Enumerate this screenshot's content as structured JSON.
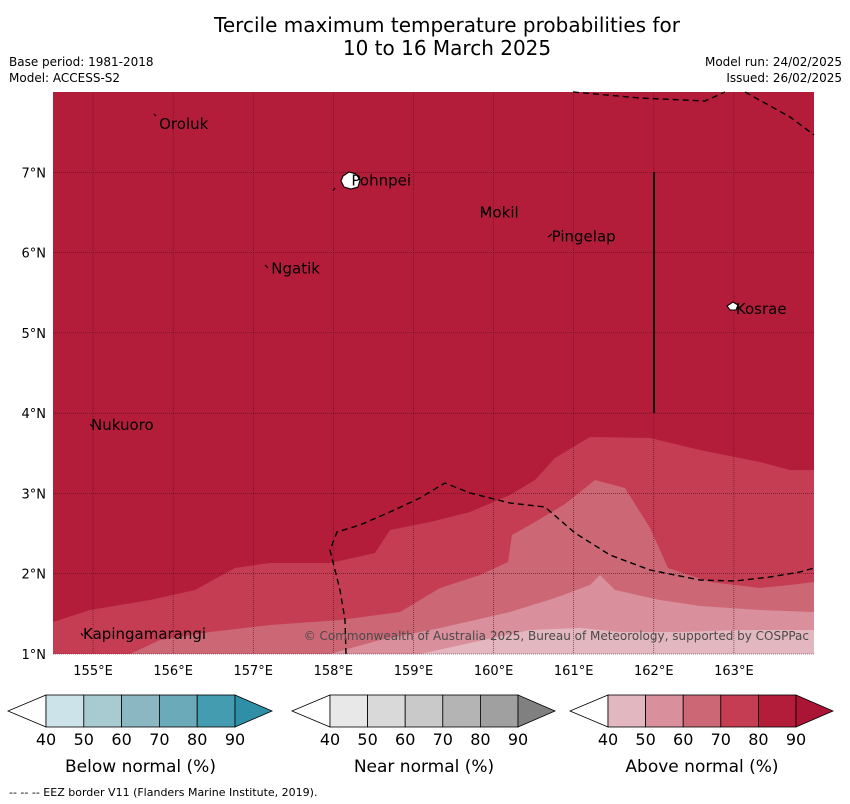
{
  "title_line1": "Tercile maximum temperature probabilities for",
  "title_line2": "10 to 16 March 2025",
  "base_period": "Base period: 1981-2018",
  "model": "Model: ACCESS-S2",
  "model_run": "Model run: 24/02/2025",
  "issued": "Issued: 26/02/2025",
  "copyright": "© Commonwealth of Australia 2025, Bureau of Meteorology, supported by COSPPac",
  "footer": "--  --  -- EEZ border V11 (Flanders Marine Institute, 2019).",
  "map": {
    "lon_range": [
      154.5,
      164.0
    ],
    "lat_range": [
      1.0,
      8.0
    ],
    "lon_ticks": [
      {
        "value": 155,
        "label": "155°E"
      },
      {
        "value": 156,
        "label": "156°E"
      },
      {
        "value": 157,
        "label": "157°E"
      },
      {
        "value": 158,
        "label": "158°E"
      },
      {
        "value": 159,
        "label": "159°E"
      },
      {
        "value": 160,
        "label": "160°E"
      },
      {
        "value": 161,
        "label": "161°E"
      },
      {
        "value": 162,
        "label": "162°E"
      },
      {
        "value": 163,
        "label": "163°E"
      }
    ],
    "lat_ticks": [
      {
        "value": 1,
        "label": "1°N"
      },
      {
        "value": 2,
        "label": "2°N"
      },
      {
        "value": 3,
        "label": "3°N"
      },
      {
        "value": 4,
        "label": "4°N"
      },
      {
        "value": 5,
        "label": "5°N"
      },
      {
        "value": 6,
        "label": "6°N"
      },
      {
        "value": 7,
        "label": "7°N"
      }
    ],
    "places": [
      {
        "name": "Oroluk",
        "lon": 155.8,
        "lat": 7.6
      },
      {
        "name": "Pohnpei",
        "lon": 158.2,
        "lat": 6.9
      },
      {
        "name": "Mokil",
        "lon": 159.8,
        "lat": 6.5
      },
      {
        "name": "Pingelap",
        "lon": 160.7,
        "lat": 6.2
      },
      {
        "name": "Ngatik",
        "lon": 157.2,
        "lat": 5.8
      },
      {
        "name": "Kosrae",
        "lon": 163.0,
        "lat": 5.3
      },
      {
        "name": "Nukuoro",
        "lon": 154.95,
        "lat": 3.85
      },
      {
        "name": "Kapingamarangi",
        "lon": 154.85,
        "lat": 1.25
      }
    ],
    "colors": {
      "above_80": "#b31d3a",
      "above_70": "#c43d52",
      "above_60": "#cc6776",
      "above_50": "#d98f9c",
      "above_40": "#e3b7bf",
      "land": "#ffffff",
      "eez": "#000000"
    }
  },
  "colorbars": [
    {
      "label": "Below normal (%)",
      "ticks": [
        "40",
        "50",
        "60",
        "70",
        "80",
        "90"
      ],
      "colors": [
        "#ffffff",
        "#cbe3e9",
        "#a8cbd1",
        "#8ab7c1",
        "#6aaab9",
        "#449cb1",
        "#2e8fa6"
      ]
    },
    {
      "label": "Near normal (%)",
      "ticks": [
        "40",
        "50",
        "60",
        "70",
        "80",
        "90"
      ],
      "colors": [
        "#ffffff",
        "#e8e8e8",
        "#d9d9d9",
        "#c9c9c9",
        "#b4b4b4",
        "#a0a0a0",
        "#808080"
      ]
    },
    {
      "label": "Above normal (%)",
      "ticks": [
        "40",
        "50",
        "60",
        "70",
        "80",
        "90"
      ],
      "colors": [
        "#ffffff",
        "#e3b7bf",
        "#d98f9c",
        "#cc6776",
        "#c43d52",
        "#b31d3a",
        "#ab1535"
      ]
    }
  ]
}
